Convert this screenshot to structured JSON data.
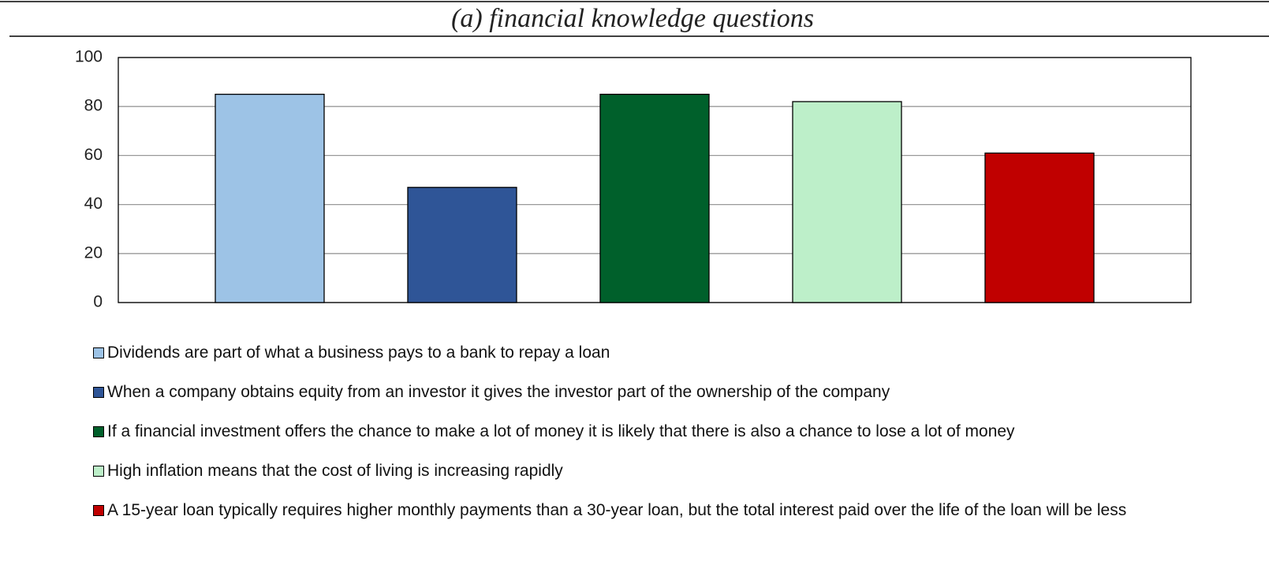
{
  "chart_data": {
    "type": "bar",
    "title": "(a) financial knowledge questions",
    "series": [
      {
        "name": "Dividends are part of what a business pays to a bank to repay a loan",
        "color": "#9dc3e6",
        "values": [
          85
        ]
      },
      {
        "name": "When a company obtains equity from an investor it gives the investor part of the ownership of the company",
        "color": "#2f5597",
        "values": [
          47
        ]
      },
      {
        "name": "If a financial investment offers the chance to make a lot of money it is likely that there is also a chance to lose a lot of money",
        "color": "#00602b",
        "values": [
          85
        ]
      },
      {
        "name": "High inflation means that the cost of living is increasing rapidly",
        "color": "#bdefc9",
        "values": [
          82
        ]
      },
      {
        "name": "A 15-year loan typically requires higher monthly payments than a 30-year loan, but the total interest paid over the life of the loan will be less",
        "color": "#c00000",
        "values": [
          61
        ]
      }
    ],
    "ylim": [
      0,
      100
    ],
    "yticks": [
      0,
      20,
      40,
      60,
      80,
      100
    ],
    "grid": true
  }
}
